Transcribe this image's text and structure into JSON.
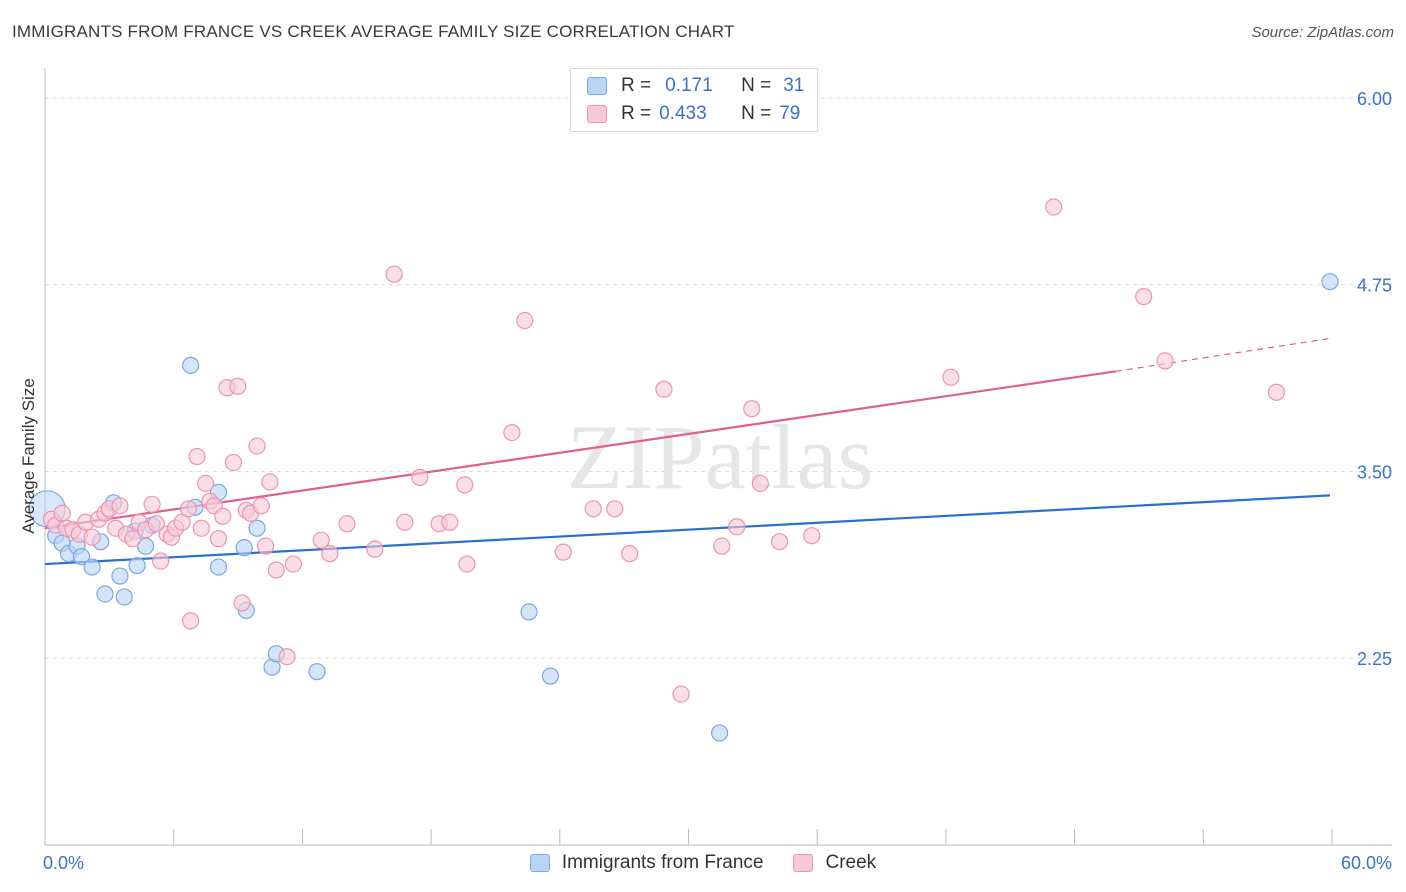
{
  "title": "IMMIGRANTS FROM FRANCE VS CREEK AVERAGE FAMILY SIZE CORRELATION CHART",
  "source": "Source: ZipAtlas.com",
  "watermark": "ZIPatlas",
  "legend": {
    "blue": {
      "r_label": "R =",
      "r_value": "0.171",
      "n_label": "N =",
      "n_value": "31"
    },
    "pink": {
      "r_label": "R =",
      "r_value": "0.433",
      "n_label": "N =",
      "n_value": "79"
    }
  },
  "chart_data": {
    "type": "scatter",
    "title": "IMMIGRANTS FROM FRANCE VS CREEK AVERAGE FAMILY SIZE CORRELATION CHART",
    "xlabel": "",
    "ylabel": "Average Family Size",
    "xlim": [
      0,
      60
    ],
    "ylim": [
      1.0,
      6.2
    ],
    "x_tick_labels": [
      "0.0%",
      "60.0%"
    ],
    "y_ticks": [
      2.25,
      3.5,
      4.75,
      6.0
    ],
    "y_tick_labels": [
      "2.25",
      "3.50",
      "4.75",
      "6.00"
    ],
    "colors": {
      "blue": "#7aa7e0",
      "blue_fill": "#b9d4f5",
      "blue_line": "#2a6fcf",
      "pink": "#ec94b0",
      "pink_fill": "#f9c9d7",
      "pink_line": "#e0608a",
      "axis_text": "#3b73c4"
    },
    "series": [
      {
        "name": "Immigrants from France",
        "color": "blue",
        "trend": {
          "x0": 0,
          "y0": 2.88,
          "x1": 60,
          "y1": 3.34
        },
        "points": [
          [
            0.1,
            3.25
          ],
          [
            0.5,
            3.07
          ],
          [
            0.8,
            3.02
          ],
          [
            1.1,
            2.95
          ],
          [
            1.5,
            3.0
          ],
          [
            1.7,
            2.93
          ],
          [
            2.2,
            2.86
          ],
          [
            2.6,
            3.03
          ],
          [
            2.8,
            2.68
          ],
          [
            3.2,
            3.29
          ],
          [
            3.5,
            2.8
          ],
          [
            3.7,
            2.66
          ],
          [
            4.2,
            3.1
          ],
          [
            4.3,
            2.87
          ],
          [
            4.7,
            3.0
          ],
          [
            5.0,
            3.14
          ],
          [
            6.8,
            4.21
          ],
          [
            7.0,
            3.26
          ],
          [
            8.1,
            3.36
          ],
          [
            8.1,
            2.86
          ],
          [
            9.3,
            2.99
          ],
          [
            9.4,
            2.57
          ],
          [
            9.9,
            3.12
          ],
          [
            10.6,
            2.19
          ],
          [
            10.8,
            2.28
          ],
          [
            12.7,
            2.16
          ],
          [
            22.6,
            2.56
          ],
          [
            23.6,
            2.13
          ],
          [
            31.5,
            1.75
          ],
          [
            60.0,
            4.77
          ]
        ]
      },
      {
        "name": "Creek",
        "color": "pink",
        "trend": {
          "x0": 0,
          "y0": 3.12,
          "x1": 50,
          "y1": 4.17,
          "dash_x1": 60,
          "dash_y1": 4.39
        },
        "points": [
          [
            0.3,
            3.18
          ],
          [
            0.5,
            3.14
          ],
          [
            0.8,
            3.22
          ],
          [
            1.0,
            3.12
          ],
          [
            1.3,
            3.11
          ],
          [
            1.6,
            3.08
          ],
          [
            1.9,
            3.16
          ],
          [
            2.2,
            3.06
          ],
          [
            2.5,
            3.18
          ],
          [
            2.8,
            3.22
          ],
          [
            3.0,
            3.25
          ],
          [
            3.3,
            3.12
          ],
          [
            3.5,
            3.27
          ],
          [
            3.8,
            3.08
          ],
          [
            4.1,
            3.05
          ],
          [
            4.4,
            3.16
          ],
          [
            4.7,
            3.11
          ],
          [
            5.0,
            3.28
          ],
          [
            5.2,
            3.15
          ],
          [
            5.4,
            2.9
          ],
          [
            5.7,
            3.08
          ],
          [
            5.9,
            3.06
          ],
          [
            6.1,
            3.12
          ],
          [
            6.4,
            3.16
          ],
          [
            6.7,
            3.25
          ],
          [
            6.8,
            2.5
          ],
          [
            7.1,
            3.6
          ],
          [
            7.3,
            3.12
          ],
          [
            7.5,
            3.42
          ],
          [
            7.7,
            3.3
          ],
          [
            7.9,
            3.27
          ],
          [
            8.1,
            3.05
          ],
          [
            8.3,
            3.2
          ],
          [
            8.5,
            4.06
          ],
          [
            8.8,
            3.56
          ],
          [
            9.0,
            4.07
          ],
          [
            9.2,
            2.62
          ],
          [
            9.4,
            3.24
          ],
          [
            9.6,
            3.22
          ],
          [
            9.9,
            3.67
          ],
          [
            10.1,
            3.27
          ],
          [
            10.3,
            3.0
          ],
          [
            10.5,
            3.43
          ],
          [
            10.8,
            2.84
          ],
          [
            11.3,
            2.26
          ],
          [
            11.6,
            2.88
          ],
          [
            12.9,
            3.04
          ],
          [
            13.3,
            2.95
          ],
          [
            14.1,
            3.15
          ],
          [
            15.4,
            2.98
          ],
          [
            16.3,
            4.82
          ],
          [
            16.8,
            3.16
          ],
          [
            17.5,
            3.46
          ],
          [
            18.4,
            3.15
          ],
          [
            18.9,
            3.16
          ],
          [
            19.6,
            3.41
          ],
          [
            19.7,
            2.88
          ],
          [
            21.8,
            3.76
          ],
          [
            22.4,
            4.51
          ],
          [
            24.2,
            2.96
          ],
          [
            25.6,
            3.25
          ],
          [
            26.6,
            3.25
          ],
          [
            27.3,
            2.95
          ],
          [
            28.9,
            4.05
          ],
          [
            29.7,
            2.01
          ],
          [
            31.6,
            3.0
          ],
          [
            32.3,
            3.13
          ],
          [
            33.0,
            3.92
          ],
          [
            33.4,
            3.42
          ],
          [
            34.3,
            3.03
          ],
          [
            35.8,
            3.07
          ],
          [
            42.3,
            4.13
          ],
          [
            47.1,
            5.27
          ],
          [
            51.3,
            4.67
          ],
          [
            52.3,
            4.24
          ],
          [
            57.5,
            4.03
          ]
        ]
      }
    ]
  },
  "bottom_legend": [
    "Immigrants from France",
    "Creek"
  ]
}
